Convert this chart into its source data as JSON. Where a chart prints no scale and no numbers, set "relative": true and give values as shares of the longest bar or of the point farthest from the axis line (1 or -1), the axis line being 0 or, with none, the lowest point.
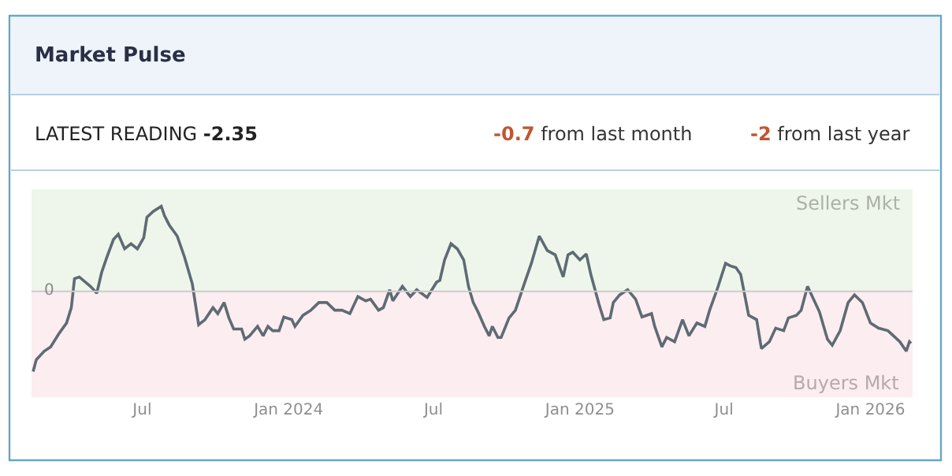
{
  "chart_data": {
    "type": "line",
    "title": "Market Pulse",
    "subtitle": "LATEST READING -2.35",
    "annotations": [
      "-0.7 from last month",
      "-2 from last year"
    ],
    "relative": true,
    "marker": "none",
    "line_style": "solid",
    "grid": false,
    "tick_labels": "x",
    "xlim": [
      "2023-02-12",
      "2026-02-23"
    ],
    "xticks": [
      {
        "value": "2023-07-01",
        "label": "Jul"
      },
      {
        "value": "2024-01-01",
        "label": "Jan 2024"
      },
      {
        "value": "2024-07-01",
        "label": "Jul"
      },
      {
        "value": "2025-01-01",
        "label": "Jan 2025"
      },
      {
        "value": "2025-07-01",
        "label": "Jul"
      },
      {
        "value": "2026-01-01",
        "label": "Jan 2026"
      }
    ],
    "ref_lines": [
      {
        "axis": "y",
        "value": 0,
        "label": "0",
        "color": "#cccccc"
      }
    ],
    "bands": [
      {
        "axis": "y",
        "from": 0,
        "to": 1.2,
        "label": "Sellers Mkt",
        "color": "#eef6ec"
      },
      {
        "axis": "y",
        "from": -1.24,
        "to": 0,
        "label": "Buyers Mkt",
        "color": "#fcedf0"
      }
    ],
    "series": [
      {
        "color": "#5f6b73",
        "x": [
          "2023-02-14",
          "2023-02-18",
          "2023-02-28",
          "2023-03-08",
          "2023-03-18",
          "2023-03-28",
          "2023-04-03",
          "2023-04-07",
          "2023-04-13",
          "2023-04-27",
          "2023-05-05",
          "2023-05-11",
          "2023-05-18",
          "2023-05-26",
          "2023-06-01",
          "2023-06-09",
          "2023-06-17",
          "2023-06-25",
          "2023-07-03",
          "2023-07-07",
          "2023-07-15",
          "2023-07-25",
          "2023-07-29",
          "2023-08-04",
          "2023-08-14",
          "2023-08-23",
          "2023-09-02",
          "2023-09-10",
          "2023-09-18",
          "2023-09-28",
          "2023-10-04",
          "2023-10-12",
          "2023-10-18",
          "2023-10-24",
          "2023-11-03",
          "2023-11-07",
          "2023-11-13",
          "2023-11-23",
          "2023-11-30",
          "2023-12-06",
          "2023-12-12",
          "2023-12-20",
          "2023-12-26",
          "2024-01-05",
          "2024-01-09",
          "2024-01-19",
          "2024-01-29",
          "2024-02-08",
          "2024-02-18",
          "2024-02-28",
          "2024-03-08",
          "2024-03-18",
          "2024-03-28",
          "2024-04-07",
          "2024-04-13",
          "2024-04-23",
          "2024-04-29",
          "2024-05-07",
          "2024-05-11",
          "2024-05-23",
          "2024-06-02",
          "2024-06-10",
          "2024-06-23",
          "2024-07-05",
          "2024-07-09",
          "2024-07-15",
          "2024-07-23",
          "2024-07-31",
          "2024-08-08",
          "2024-08-14",
          "2024-08-20",
          "2024-08-26",
          "2024-09-03",
          "2024-09-09",
          "2024-09-13",
          "2024-09-20",
          "2024-09-24",
          "2024-10-04",
          "2024-10-12",
          "2024-10-22",
          "2024-11-01",
          "2024-11-11",
          "2024-11-21",
          "2024-12-01",
          "2024-12-11",
          "2024-12-17",
          "2024-12-23",
          "2025-01-01",
          "2025-01-09",
          "2025-01-15",
          "2025-01-25",
          "2025-01-31",
          "2025-02-08",
          "2025-02-12",
          "2025-02-20",
          "2025-03-02",
          "2025-03-12",
          "2025-03-20",
          "2025-04-01",
          "2025-04-05",
          "2025-04-14",
          "2025-04-20",
          "2025-04-30",
          "2025-05-10",
          "2025-05-18",
          "2025-05-28",
          "2025-06-07",
          "2025-06-13",
          "2025-06-23",
          "2025-07-03",
          "2025-07-09",
          "2025-07-16",
          "2025-07-22",
          "2025-08-01",
          "2025-08-11",
          "2025-08-17",
          "2025-08-27",
          "2025-09-04",
          "2025-09-14",
          "2025-09-20",
          "2025-09-30",
          "2025-10-06",
          "2025-10-14",
          "2025-10-20",
          "2025-10-29",
          "2025-11-08",
          "2025-11-14",
          "2025-11-24",
          "2025-12-04",
          "2025-12-12",
          "2025-12-22",
          "2026-01-01",
          "2026-01-11",
          "2026-01-23",
          "2026-01-30",
          "2026-02-07",
          "2026-02-15",
          "2026-02-19",
          "2026-02-21"
        ],
        "values": [
          -0.94,
          -0.8,
          -0.7,
          -0.65,
          -0.5,
          -0.37,
          -0.19,
          0.15,
          0.17,
          0.06,
          -0.02,
          0.22,
          0.41,
          0.61,
          0.67,
          0.5,
          0.56,
          0.5,
          0.63,
          0.87,
          0.94,
          1,
          0.89,
          0.78,
          0.65,
          0.41,
          0.09,
          -0.39,
          -0.33,
          -0.19,
          -0.26,
          -0.13,
          -0.31,
          -0.44,
          -0.44,
          -0.56,
          -0.52,
          -0.41,
          -0.52,
          -0.41,
          -0.46,
          -0.46,
          -0.3,
          -0.33,
          -0.41,
          -0.28,
          -0.22,
          -0.13,
          -0.13,
          -0.22,
          -0.22,
          -0.26,
          -0.06,
          -0.11,
          -0.09,
          -0.22,
          -0.19,
          0.02,
          -0.11,
          0.06,
          -0.06,
          0.02,
          -0.07,
          0.11,
          0.13,
          0.37,
          0.56,
          0.5,
          0.37,
          0.06,
          -0.13,
          -0.24,
          -0.41,
          -0.52,
          -0.41,
          -0.54,
          -0.54,
          -0.31,
          -0.22,
          0.06,
          0.33,
          0.65,
          0.48,
          0.43,
          0.17,
          0.43,
          0.46,
          0.37,
          0.44,
          0.19,
          -0.15,
          -0.33,
          -0.31,
          -0.13,
          -0.04,
          0.02,
          -0.09,
          -0.3,
          -0.26,
          -0.41,
          -0.65,
          -0.54,
          -0.59,
          -0.33,
          -0.52,
          -0.37,
          -0.41,
          -0.22,
          0.04,
          0.33,
          0.3,
          0.28,
          0.2,
          -0.28,
          -0.33,
          -0.67,
          -0.59,
          -0.43,
          -0.46,
          -0.31,
          -0.28,
          -0.22,
          0.06,
          -0.06,
          -0.24,
          -0.56,
          -0.63,
          -0.46,
          -0.13,
          -0.04,
          -0.13,
          -0.37,
          -0.43,
          -0.46,
          -0.52,
          -0.59,
          -0.7,
          -0.59,
          -0.61
        ]
      }
    ]
  }
}
